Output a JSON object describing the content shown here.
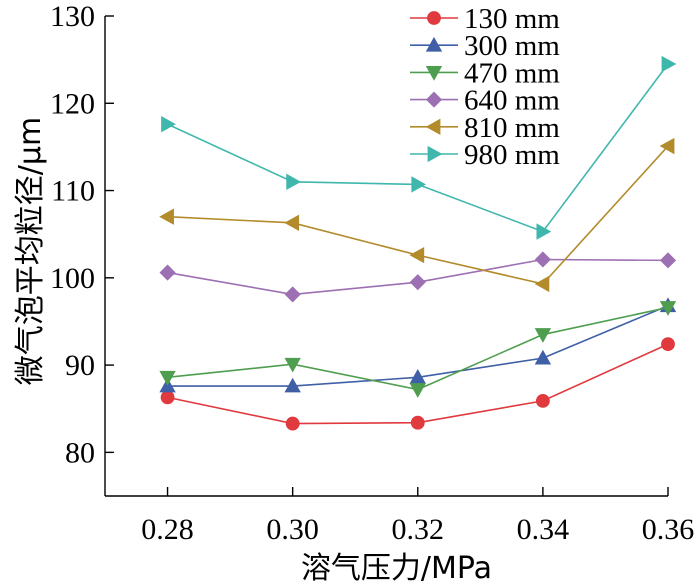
{
  "chart_data": {
    "type": "line",
    "title": "",
    "xlabel": "溶气压力/MPa",
    "ylabel": "微气泡平均粒径/μm",
    "x": [
      0.28,
      0.3,
      0.32,
      0.34,
      0.36
    ],
    "x_tick_labels": [
      "0.28",
      "0.30",
      "0.32",
      "0.34",
      "0.36"
    ],
    "y_ticks": [
      80,
      90,
      100,
      110,
      120,
      130
    ],
    "y_tick_labels": [
      "80",
      "90",
      "100",
      "110",
      "120",
      "130"
    ],
    "xlim": [
      0.27,
      0.36
    ],
    "ylim": [
      75,
      130
    ],
    "grid": false,
    "legend_position": "top-right",
    "series": [
      {
        "name": "130 mm",
        "color": "#e0393e",
        "marker": "circle",
        "values": [
          86.3,
          83.3,
          83.4,
          85.9,
          92.4
        ]
      },
      {
        "name": "300 mm",
        "color": "#3f5fa6",
        "marker": "triangle-up",
        "values": [
          87.6,
          87.6,
          88.6,
          90.8,
          96.8
        ]
      },
      {
        "name": "470 mm",
        "color": "#4f9e4f",
        "marker": "triangle-down",
        "values": [
          88.6,
          90.1,
          87.2,
          93.5,
          96.6
        ]
      },
      {
        "name": "640 mm",
        "color": "#9d6fb3",
        "marker": "diamond",
        "values": [
          100.6,
          98.1,
          99.5,
          102.1,
          102.0
        ]
      },
      {
        "name": "810 mm",
        "color": "#b38b2b",
        "marker": "triangle-left",
        "values": [
          107.0,
          106.3,
          102.6,
          99.3,
          115.1
        ]
      },
      {
        "name": "980 mm",
        "color": "#3fb7ad",
        "marker": "triangle-right",
        "values": [
          117.6,
          111.0,
          110.7,
          105.3,
          124.5
        ]
      }
    ]
  }
}
